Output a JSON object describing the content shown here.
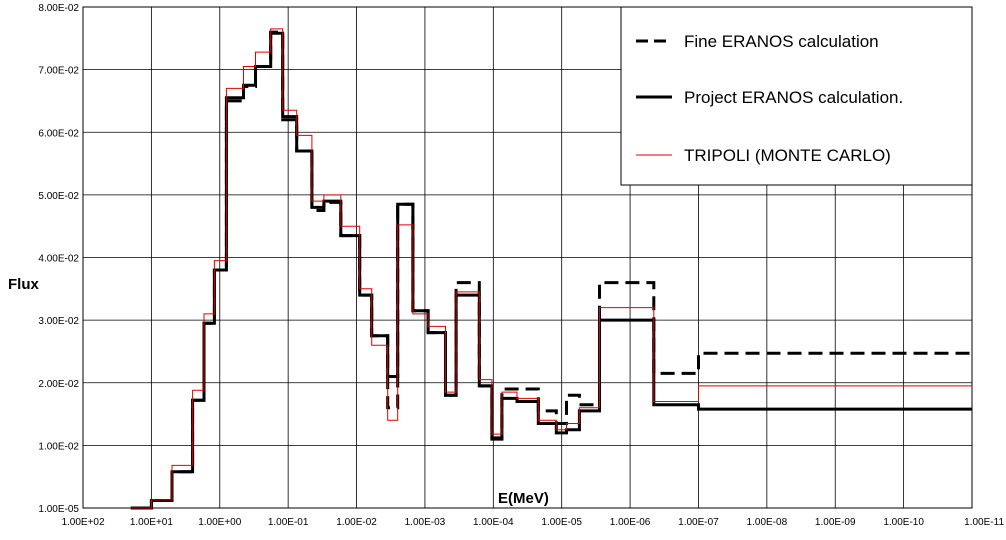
{
  "chart_data": {
    "type": "line",
    "step": true,
    "title": "",
    "xlabel": "E(MeV)",
    "ylabel": "Flux",
    "x_reversed": true,
    "x_scale": "log",
    "grid": true,
    "legend_position": "top-right",
    "x_ticks": [
      "1.00E+02",
      "1.00E+01",
      "1.00E+00",
      "1.00E-01",
      "1.00E-02",
      "1.00E-03",
      "1.00E-04",
      "1.00E-05",
      "1.00E-06",
      "1.00E-07",
      "1.00E-08",
      "1.00E-09",
      "1.00E-10",
      "1.00E-11"
    ],
    "y_ticks": [
      "1.00E-05",
      "1.00E-02",
      "2.00E-02",
      "3.00E-02",
      "4.00E-02",
      "5.00E-02",
      "6.00E-02",
      "7.00E-02",
      "8.00E-02"
    ],
    "ylim": [
      0,
      0.08
    ],
    "series": [
      {
        "name": "Fine ERANOS calculation",
        "style": "dashed",
        "color": "#000000",
        "bins": [
          [
            20,
            10,
            0.0
          ],
          [
            10,
            5,
            0.0012
          ],
          [
            5,
            2.5,
            0.0058
          ],
          [
            2.5,
            1.7,
            0.0172
          ],
          [
            1.7,
            1.2,
            0.0295
          ],
          [
            1.2,
            0.8,
            0.038
          ],
          [
            0.8,
            0.45,
            0.065
          ],
          [
            0.45,
            0.3,
            0.0673
          ],
          [
            0.3,
            0.18,
            0.0705
          ],
          [
            0.18,
            0.12,
            0.076
          ],
          [
            0.12,
            0.075,
            0.062
          ],
          [
            0.075,
            0.045,
            0.057
          ],
          [
            0.045,
            0.03,
            0.0475
          ],
          [
            0.03,
            0.017,
            0.0488
          ],
          [
            0.017,
            0.009,
            0.0435
          ],
          [
            0.009,
            0.006,
            0.034
          ],
          [
            0.006,
            0.0035,
            0.0275
          ],
          [
            0.0035,
            0.0025,
            0.016
          ],
          [
            0.0025,
            0.0015,
            0.0485
          ],
          [
            0.0015,
            0.0009,
            0.0315
          ],
          [
            0.0009,
            0.0005,
            0.028
          ],
          [
            0.0005,
            0.00035,
            0.018
          ],
          [
            0.00035,
            0.00016,
            0.036
          ],
          [
            0.00016,
            0.000105,
            0.0195
          ],
          [
            0.000105,
            7.5e-05,
            0.0112
          ],
          [
            7.5e-05,
            4.5e-05,
            0.019
          ],
          [
            4.5e-05,
            2.2e-05,
            0.019
          ],
          [
            2.2e-05,
            1.2e-05,
            0.0155
          ],
          [
            1.2e-05,
            8.5e-06,
            0.0135
          ],
          [
            8.5e-06,
            5.5e-06,
            0.018
          ],
          [
            5.5e-06,
            2.8e-06,
            0.0165
          ],
          [
            2.8e-06,
            4.5e-07,
            0.036
          ],
          [
            4.5e-07,
            1e-07,
            0.0215
          ],
          [
            1e-07,
            1e-11,
            0.0247
          ]
        ]
      },
      {
        "name": "Project ERANOS calculation.",
        "style": "solid",
        "color": "#000000",
        "bins": [
          [
            20,
            10,
            0.0
          ],
          [
            10,
            5,
            0.0012
          ],
          [
            5,
            2.5,
            0.0058
          ],
          [
            2.5,
            1.7,
            0.0172
          ],
          [
            1.7,
            1.2,
            0.0295
          ],
          [
            1.2,
            0.8,
            0.038
          ],
          [
            0.8,
            0.45,
            0.0655
          ],
          [
            0.45,
            0.3,
            0.0675
          ],
          [
            0.3,
            0.18,
            0.0705
          ],
          [
            0.18,
            0.12,
            0.0758
          ],
          [
            0.12,
            0.075,
            0.0625
          ],
          [
            0.075,
            0.045,
            0.057
          ],
          [
            0.045,
            0.03,
            0.048
          ],
          [
            0.03,
            0.017,
            0.049
          ],
          [
            0.017,
            0.009,
            0.0435
          ],
          [
            0.009,
            0.006,
            0.034
          ],
          [
            0.006,
            0.0035,
            0.0275
          ],
          [
            0.0035,
            0.0025,
            0.021
          ],
          [
            0.0025,
            0.0015,
            0.0485
          ],
          [
            0.0015,
            0.0009,
            0.0315
          ],
          [
            0.0009,
            0.0005,
            0.028
          ],
          [
            0.0005,
            0.00035,
            0.018
          ],
          [
            0.00035,
            0.00016,
            0.034
          ],
          [
            0.00016,
            0.000105,
            0.0195
          ],
          [
            0.000105,
            7.5e-05,
            0.011
          ],
          [
            7.5e-05,
            4.5e-05,
            0.0175
          ],
          [
            4.5e-05,
            2.2e-05,
            0.017
          ],
          [
            2.2e-05,
            1.2e-05,
            0.0135
          ],
          [
            1.2e-05,
            8.5e-06,
            0.012
          ],
          [
            8.5e-06,
            5.5e-06,
            0.0125
          ],
          [
            5.5e-06,
            2.8e-06,
            0.0155
          ],
          [
            2.8e-06,
            4.5e-07,
            0.03
          ],
          [
            4.5e-07,
            1e-07,
            0.0165
          ],
          [
            1e-07,
            1e-11,
            0.0158
          ]
        ]
      },
      {
        "name": "TRIPOLI (MONTE CARLO)",
        "style": "solid",
        "color": "#e00000",
        "bins": [
          [
            20,
            10,
            0.0
          ],
          [
            10,
            5,
            0.0013
          ],
          [
            5,
            2.5,
            0.0068
          ],
          [
            2.5,
            1.7,
            0.0188
          ],
          [
            1.7,
            1.2,
            0.031
          ],
          [
            1.2,
            0.8,
            0.0395
          ],
          [
            0.8,
            0.45,
            0.067
          ],
          [
            0.45,
            0.3,
            0.0705
          ],
          [
            0.3,
            0.18,
            0.0728
          ],
          [
            0.18,
            0.12,
            0.0765
          ],
          [
            0.12,
            0.075,
            0.0635
          ],
          [
            0.075,
            0.045,
            0.0595
          ],
          [
            0.045,
            0.03,
            0.049
          ],
          [
            0.03,
            0.017,
            0.05
          ],
          [
            0.017,
            0.009,
            0.045
          ],
          [
            0.009,
            0.006,
            0.035
          ],
          [
            0.006,
            0.0035,
            0.026
          ],
          [
            0.0035,
            0.0025,
            0.014
          ],
          [
            0.0025,
            0.0015,
            0.0452
          ],
          [
            0.0015,
            0.0009,
            0.031
          ],
          [
            0.0009,
            0.0005,
            0.029
          ],
          [
            0.0005,
            0.00035,
            0.0185
          ],
          [
            0.00035,
            0.00016,
            0.0345
          ],
          [
            0.00016,
            0.000105,
            0.0205
          ],
          [
            0.000105,
            7.5e-05,
            0.0118
          ],
          [
            7.5e-05,
            4.5e-05,
            0.0185
          ],
          [
            4.5e-05,
            2.2e-05,
            0.0175
          ],
          [
            2.2e-05,
            1.2e-05,
            0.014
          ],
          [
            1.2e-05,
            8.5e-06,
            0.0125
          ],
          [
            8.5e-06,
            5.5e-06,
            0.0135
          ],
          [
            5.5e-06,
            2.8e-06,
            0.016
          ],
          [
            2.8e-06,
            4.5e-07,
            0.032
          ],
          [
            4.5e-07,
            1e-07,
            0.017
          ],
          [
            1e-07,
            1e-11,
            0.0195
          ]
        ]
      }
    ]
  }
}
